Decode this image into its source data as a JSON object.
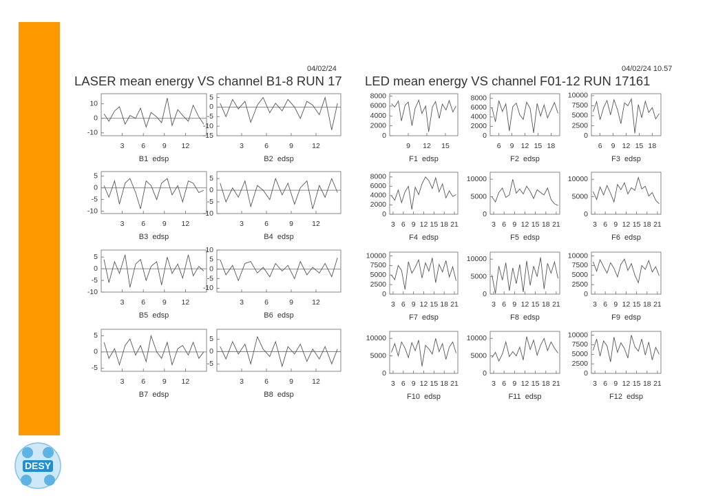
{
  "slide": {
    "left_header": "LASER mean energy VS  channel B1-8   RUN 17",
    "left_date": "04/02/24",
    "right_header": "LED mean energy  VS  channel F01-12   RUN 17161",
    "right_date": "04/02/24  10.57",
    "logo": "DESY"
  },
  "chart_data": [
    {
      "type": "line",
      "title": "B1  edsp",
      "xlim": [
        0,
        15
      ],
      "xticks": [
        3,
        6,
        9,
        12
      ],
      "ylim": [
        -12,
        17
      ],
      "yticks": [
        -10,
        0,
        10
      ],
      "zero_line": true,
      "color": "#555555",
      "x": [
        0.4,
        1.1,
        1.9,
        2.6,
        3.4,
        4.1,
        4.9,
        5.6,
        6.4,
        7.1,
        7.9,
        8.6,
        9.4,
        10.1,
        10.9,
        11.6,
        12.4,
        13.1,
        13.9,
        14.6
      ],
      "values": [
        3,
        -2,
        5,
        8,
        -4,
        2,
        0,
        7,
        -6,
        4,
        1,
        -3,
        14,
        -5,
        6,
        2,
        -2,
        9,
        1,
        -4
      ]
    },
    {
      "type": "line",
      "title": "B2  edsp",
      "xlim": [
        0,
        15
      ],
      "xticks": [
        3,
        6,
        9,
        12
      ],
      "ylim": [
        -15,
        7
      ],
      "yticks": [
        -15,
        -10,
        -5,
        0,
        5
      ],
      "zero_line": true,
      "color": "#555555",
      "x": [
        0.4,
        1.1,
        1.9,
        2.6,
        3.4,
        4.1,
        4.9,
        5.6,
        6.4,
        7.1,
        7.9,
        8.6,
        9.4,
        10.1,
        10.9,
        11.6,
        12.4,
        13.1,
        13.9,
        14.6
      ],
      "values": [
        2,
        -5,
        4,
        -1,
        3,
        -8,
        1,
        5,
        -3,
        2,
        -2,
        4,
        0,
        -6,
        3,
        1,
        -4,
        5,
        -12,
        2
      ]
    },
    {
      "type": "line",
      "title": "B3  edsp",
      "xlim": [
        0,
        15
      ],
      "xticks": [
        3,
        6,
        9,
        12
      ],
      "ylim": [
        -11,
        7
      ],
      "yticks": [
        -10,
        -5,
        0,
        5
      ],
      "zero_line": true,
      "color": "#555555",
      "x": [
        0.4,
        1.1,
        1.9,
        2.6,
        3.4,
        4.1,
        4.9,
        5.6,
        6.4,
        7.1,
        7.9,
        8.6,
        9.4,
        10.1,
        10.9,
        11.6,
        12.4,
        13.1,
        13.9,
        14.6
      ],
      "values": [
        1,
        -4,
        3,
        -7,
        2,
        4,
        -2,
        -9,
        3,
        1,
        -5,
        2,
        4,
        -3,
        1,
        -6,
        3,
        2,
        -2,
        -1
      ]
    },
    {
      "type": "line",
      "title": "B4  edsp",
      "xlim": [
        0,
        15
      ],
      "xticks": [
        3,
        6,
        9,
        12
      ],
      "ylim": [
        -10,
        8
      ],
      "yticks": [
        -10,
        -5,
        0,
        5
      ],
      "zero_line": true,
      "color": "#555555",
      "x": [
        0.4,
        1.1,
        1.9,
        2.6,
        3.4,
        4.1,
        4.9,
        5.6,
        6.4,
        7.1,
        7.9,
        8.6,
        9.4,
        10.1,
        10.9,
        11.6,
        12.4,
        13.1,
        13.9,
        14.6
      ],
      "values": [
        3,
        -5,
        1,
        -3,
        4,
        -7,
        2,
        0,
        -4,
        5,
        -2,
        3,
        -6,
        1,
        4,
        -8,
        2,
        -3,
        5,
        -1
      ]
    },
    {
      "type": "line",
      "title": "B5  edsp",
      "xlim": [
        0,
        15
      ],
      "xticks": [
        3,
        6,
        9,
        12
      ],
      "ylim": [
        -10,
        8
      ],
      "yticks": [
        -10,
        -5,
        0,
        5
      ],
      "zero_line": true,
      "color": "#555555",
      "x": [
        0.4,
        1.1,
        1.9,
        2.6,
        3.4,
        4.1,
        4.9,
        5.6,
        6.4,
        7.1,
        7.9,
        8.6,
        9.4,
        10.1,
        10.9,
        11.6,
        12.4,
        13.1,
        13.9,
        14.6
      ],
      "values": [
        4,
        -6,
        3,
        -2,
        6,
        -8,
        2,
        4,
        -5,
        1,
        3,
        -7,
        5,
        -2,
        2,
        -4,
        6,
        -3,
        1,
        -1
      ]
    },
    {
      "type": "line",
      "title": "B6  edsp",
      "xlim": [
        0,
        15
      ],
      "xticks": [
        3,
        6,
        9,
        12
      ],
      "ylim": [
        -12,
        10
      ],
      "yticks": [
        -10,
        -5,
        0,
        5,
        10
      ],
      "zero_line": true,
      "color": "#555555",
      "x": [
        0.4,
        1.1,
        1.9,
        2.6,
        3.4,
        4.1,
        4.9,
        5.6,
        6.4,
        7.1,
        7.9,
        8.6,
        9.4,
        10.1,
        10.9,
        11.6,
        12.4,
        13.1,
        13.9,
        14.6
      ],
      "values": [
        5,
        -3,
        2,
        -6,
        3,
        4,
        -2,
        1,
        -4,
        3,
        -1,
        2,
        -5,
        4,
        -3,
        1,
        -2,
        3,
        -4,
        6
      ]
    },
    {
      "type": "line",
      "title": "B7  edsp",
      "xlim": [
        0,
        15
      ],
      "xticks": [
        3,
        6,
        9,
        12
      ],
      "ylim": [
        -6,
        7
      ],
      "yticks": [
        -5,
        0,
        5
      ],
      "zero_line": true,
      "color": "#555555",
      "x": [
        0.4,
        1.1,
        1.9,
        2.6,
        3.4,
        4.1,
        4.9,
        5.6,
        6.4,
        7.1,
        7.9,
        8.6,
        9.4,
        10.1,
        10.9,
        11.6,
        12.4,
        13.1,
        13.9,
        14.6
      ],
      "values": [
        3,
        -2,
        1,
        -4,
        2,
        4,
        -1,
        2,
        -3,
        5,
        0,
        -2,
        3,
        -4,
        1,
        2,
        -1,
        3,
        -2,
        0
      ]
    },
    {
      "type": "line",
      "title": "B8  edsp",
      "xlim": [
        0,
        15
      ],
      "xticks": [
        3,
        6,
        9,
        12
      ],
      "ylim": [
        -8,
        9
      ],
      "yticks": [
        -5,
        0,
        5
      ],
      "zero_line": true,
      "color": "#555555",
      "x": [
        0.4,
        1.1,
        1.9,
        2.6,
        3.4,
        4.1,
        4.9,
        5.6,
        6.4,
        7.1,
        7.9,
        8.6,
        9.4,
        10.1,
        10.9,
        11.6,
        12.4,
        13.1,
        13.9,
        14.6
      ],
      "values": [
        2,
        -3,
        4,
        -1,
        3,
        -5,
        6,
        1,
        -2,
        4,
        -6,
        2,
        -1,
        3,
        -4,
        1,
        -3,
        2,
        -5,
        1
      ]
    },
    {
      "type": "line",
      "title": "F1  edsp",
      "xlim": [
        6,
        17
      ],
      "xticks": [
        9,
        12,
        15
      ],
      "ylim": [
        0,
        8500
      ],
      "yticks": [
        0,
        2000,
        4000,
        6000,
        8000
      ],
      "zero_line": false,
      "color": "#555555",
      "x": [
        6.3,
        6.8,
        7.4,
        7.9,
        8.5,
        9,
        9.6,
        10.1,
        10.7,
        11.2,
        11.8,
        12.3,
        12.9,
        13.4,
        14,
        14.5,
        15.1,
        15.6,
        16.2,
        16.7
      ],
      "values": [
        6500,
        5800,
        7000,
        3000,
        6200,
        6800,
        2000,
        5500,
        7200,
        4500,
        6000,
        800,
        5800,
        6900,
        3500,
        6400,
        5200,
        7100,
        4800,
        6000
      ]
    },
    {
      "type": "line",
      "title": "F2  edsp",
      "xlim": [
        4,
        20
      ],
      "xticks": [
        6,
        9,
        12,
        15,
        18
      ],
      "ylim": [
        0,
        9000
      ],
      "yticks": [
        0,
        2000,
        4000,
        6000,
        8000
      ],
      "zero_line": false,
      "color": "#555555",
      "x": [
        4.4,
        5.2,
        6,
        6.8,
        7.6,
        8.4,
        9.2,
        10,
        10.8,
        11.6,
        12.4,
        13.2,
        14,
        14.8,
        15.6,
        16.4,
        17.2,
        18,
        18.8,
        19.6
      ],
      "values": [
        6000,
        3000,
        7500,
        5200,
        6800,
        1000,
        6200,
        7000,
        4500,
        3500,
        7200,
        5800,
        600,
        6900,
        4200,
        6600,
        3800,
        5500,
        7100,
        4800
      ]
    },
    {
      "type": "line",
      "title": "F3  edsp",
      "xlim": [
        4,
        20
      ],
      "xticks": [
        6,
        9,
        12,
        15,
        18
      ],
      "ylim": [
        0,
        10500
      ],
      "yticks": [
        0,
        2500,
        5000,
        7500,
        10000
      ],
      "zero_line": false,
      "color": "#555555",
      "x": [
        4.4,
        5.2,
        6,
        6.8,
        7.6,
        8.4,
        9.2,
        10,
        10.8,
        11.6,
        12.4,
        13.2,
        14,
        14.8,
        15.6,
        16.4,
        17.2,
        18,
        18.8,
        19.6
      ],
      "values": [
        6000,
        8500,
        4000,
        7000,
        8800,
        5200,
        9000,
        6500,
        3000,
        8200,
        7500,
        9200,
        600,
        7800,
        4500,
        8600,
        5800,
        7000,
        4200,
        5500
      ]
    },
    {
      "type": "line",
      "title": "F4  edsp",
      "xlim": [
        2,
        22
      ],
      "xticks": [
        3,
        6,
        9,
        12,
        15,
        18,
        21
      ],
      "ylim": [
        0,
        9000
      ],
      "yticks": [
        0,
        2000,
        4000,
        6000,
        8000
      ],
      "zero_line": false,
      "color": "#555555",
      "x": [
        2.5,
        3.5,
        4.5,
        5.5,
        6.5,
        7.5,
        8.5,
        9.5,
        10.5,
        11.5,
        12.5,
        13.5,
        14.5,
        15.5,
        16.5,
        17.5,
        18.5,
        19.5,
        20.5,
        21.5
      ],
      "values": [
        4000,
        3000,
        5200,
        2500,
        4800,
        6000,
        1000,
        5800,
        4200,
        6500,
        8000,
        7200,
        5500,
        7800,
        4800,
        6500,
        3500,
        5000,
        3800,
        4200
      ]
    },
    {
      "type": "line",
      "title": "F5  edsp",
      "xlim": [
        2,
        22
      ],
      "xticks": [
        3,
        6,
        9,
        12,
        15,
        18,
        21
      ],
      "ylim": [
        0,
        12000
      ],
      "yticks": [
        0,
        5000,
        10000
      ],
      "zero_line": false,
      "color": "#555555",
      "x": [
        2.5,
        3.5,
        4.5,
        5.5,
        6.5,
        7.5,
        8.5,
        9.5,
        10.5,
        11.5,
        12.5,
        13.5,
        14.5,
        15.5,
        16.5,
        17.5,
        18.5,
        19.5,
        20.5,
        21.5
      ],
      "values": [
        5000,
        3500,
        6200,
        7500,
        4800,
        5500,
        10000,
        6000,
        7200,
        5800,
        8000,
        6500,
        4500,
        7000,
        6200,
        5500,
        7500,
        4200,
        3000,
        2500
      ]
    },
    {
      "type": "line",
      "title": "F6  edsp",
      "xlim": [
        2,
        22
      ],
      "xticks": [
        3,
        6,
        9,
        12,
        15,
        18,
        21
      ],
      "ylim": [
        0,
        12000
      ],
      "yticks": [
        0,
        5000,
        10000
      ],
      "zero_line": false,
      "color": "#555555",
      "x": [
        2.5,
        3.5,
        4.5,
        5.5,
        6.5,
        7.5,
        8.5,
        9.5,
        10.5,
        11.5,
        12.5,
        13.5,
        14.5,
        15.5,
        16.5,
        17.5,
        18.5,
        19.5,
        20.5,
        21.5
      ],
      "values": [
        6500,
        4200,
        7800,
        5500,
        8200,
        6000,
        3500,
        8500,
        7000,
        9000,
        5800,
        7600,
        6800,
        10500,
        7200,
        8000,
        5200,
        6200,
        4000,
        3000
      ]
    },
    {
      "type": "line",
      "title": "F7  edsp",
      "xlim": [
        2,
        22
      ],
      "xticks": [
        3,
        6,
        9,
        12,
        15,
        18,
        21
      ],
      "ylim": [
        0,
        11000
      ],
      "yticks": [
        0,
        2500,
        5000,
        7500,
        10000
      ],
      "zero_line": false,
      "color": "#555555",
      "x": [
        2.5,
        3.5,
        4.5,
        5.5,
        6.5,
        7.5,
        8.5,
        9.5,
        10.5,
        11.5,
        12.5,
        13.5,
        14.5,
        15.5,
        16.5,
        17.5,
        18.5,
        19.5,
        20.5,
        21.5
      ],
      "values": [
        5000,
        3800,
        7500,
        6200,
        1200,
        8500,
        5500,
        7000,
        9000,
        4200,
        8200,
        6000,
        9500,
        3000,
        7800,
        5800,
        8800,
        4500,
        7200,
        3500
      ]
    },
    {
      "type": "line",
      "title": "F8  edsp",
      "xlim": [
        2,
        22
      ],
      "xticks": [
        3,
        6,
        9,
        12,
        15,
        18,
        21
      ],
      "ylim": [
        0,
        12000
      ],
      "yticks": [
        0,
        5000,
        10000
      ],
      "zero_line": false,
      "color": "#555555",
      "x": [
        2.5,
        3.5,
        4.5,
        5.5,
        6.5,
        7.5,
        8.5,
        9.5,
        10.5,
        11.5,
        12.5,
        13.5,
        14.5,
        15.5,
        16.5,
        17.5,
        18.5,
        19.5,
        20.5,
        21.5
      ],
      "values": [
        5500,
        200,
        8000,
        4000,
        9000,
        1000,
        7500,
        3000,
        8500,
        600,
        9500,
        2500,
        8000,
        5000,
        10500,
        1500,
        8800,
        6000,
        9200,
        4500
      ]
    },
    {
      "type": "line",
      "title": "F9  edsp",
      "xlim": [
        2,
        22
      ],
      "xticks": [
        3,
        6,
        9,
        12,
        15,
        18,
        21
      ],
      "ylim": [
        0,
        11000
      ],
      "yticks": [
        0,
        2500,
        5000,
        7500,
        10000
      ],
      "zero_line": false,
      "color": "#555555",
      "x": [
        2.5,
        3.5,
        4.5,
        5.5,
        6.5,
        7.5,
        8.5,
        9.5,
        10.5,
        11.5,
        12.5,
        13.5,
        14.5,
        15.5,
        16.5,
        17.5,
        18.5,
        19.5,
        20.5,
        21.5
      ],
      "values": [
        8500,
        6000,
        9000,
        7200,
        5500,
        8200,
        6800,
        4500,
        7800,
        9200,
        6200,
        8000,
        5000,
        3000,
        7500,
        6500,
        8800,
        5800,
        7200,
        4800
      ]
    },
    {
      "type": "line",
      "title": "F10  edsp",
      "xlim": [
        2,
        22
      ],
      "xticks": [
        3,
        6,
        9,
        12,
        15,
        18,
        21
      ],
      "ylim": [
        0,
        12000
      ],
      "yticks": [
        0,
        5000,
        10000
      ],
      "zero_line": false,
      "color": "#555555",
      "x": [
        2.5,
        3.5,
        4.5,
        5.5,
        6.5,
        7.5,
        8.5,
        9.5,
        10.5,
        11.5,
        12.5,
        13.5,
        14.5,
        15.5,
        16.5,
        17.5,
        18.5,
        19.5,
        20.5,
        21.5
      ],
      "values": [
        6000,
        8500,
        5000,
        9000,
        7200,
        4500,
        8800,
        6500,
        9500,
        2000,
        8000,
        7000,
        5500,
        10000,
        6200,
        8500,
        4000,
        7500,
        9000,
        5800
      ]
    },
    {
      "type": "line",
      "title": "F11  edsp",
      "xlim": [
        2,
        22
      ],
      "xticks": [
        3,
        6,
        9,
        12,
        15,
        18,
        21
      ],
      "ylim": [
        0,
        12000
      ],
      "yticks": [
        0,
        5000,
        10000
      ],
      "zero_line": false,
      "color": "#555555",
      "x": [
        2.5,
        3.5,
        4.5,
        5.5,
        6.5,
        7.5,
        8.5,
        9.5,
        10.5,
        11.5,
        12.5,
        13.5,
        14.5,
        15.5,
        16.5,
        17.5,
        18.5,
        19.5,
        20.5,
        21.5
      ],
      "values": [
        4500,
        6000,
        3500,
        5500,
        9000,
        4800,
        6200,
        5000,
        7500,
        3800,
        10500,
        6800,
        9500,
        5200,
        8000,
        10000,
        6500,
        9000,
        7200,
        5800
      ]
    },
    {
      "type": "line",
      "title": "F12  edsp",
      "xlim": [
        2,
        22
      ],
      "xticks": [
        3,
        6,
        9,
        12,
        15,
        18,
        21
      ],
      "ylim": [
        0,
        11000
      ],
      "yticks": [
        0,
        2500,
        5000,
        7500,
        10000
      ],
      "zero_line": false,
      "color": "#555555",
      "x": [
        2.5,
        3.5,
        4.5,
        5.5,
        6.5,
        7.5,
        8.5,
        9.5,
        10.5,
        11.5,
        12.5,
        13.5,
        14.5,
        15.5,
        16.5,
        17.5,
        18.5,
        19.5,
        20.5,
        21.5
      ],
      "values": [
        6000,
        9000,
        4500,
        8500,
        7200,
        3000,
        9500,
        5500,
        8000,
        6500,
        4000,
        10000,
        7000,
        5800,
        9000,
        4800,
        8200,
        3500,
        6800,
        5000
      ]
    }
  ]
}
